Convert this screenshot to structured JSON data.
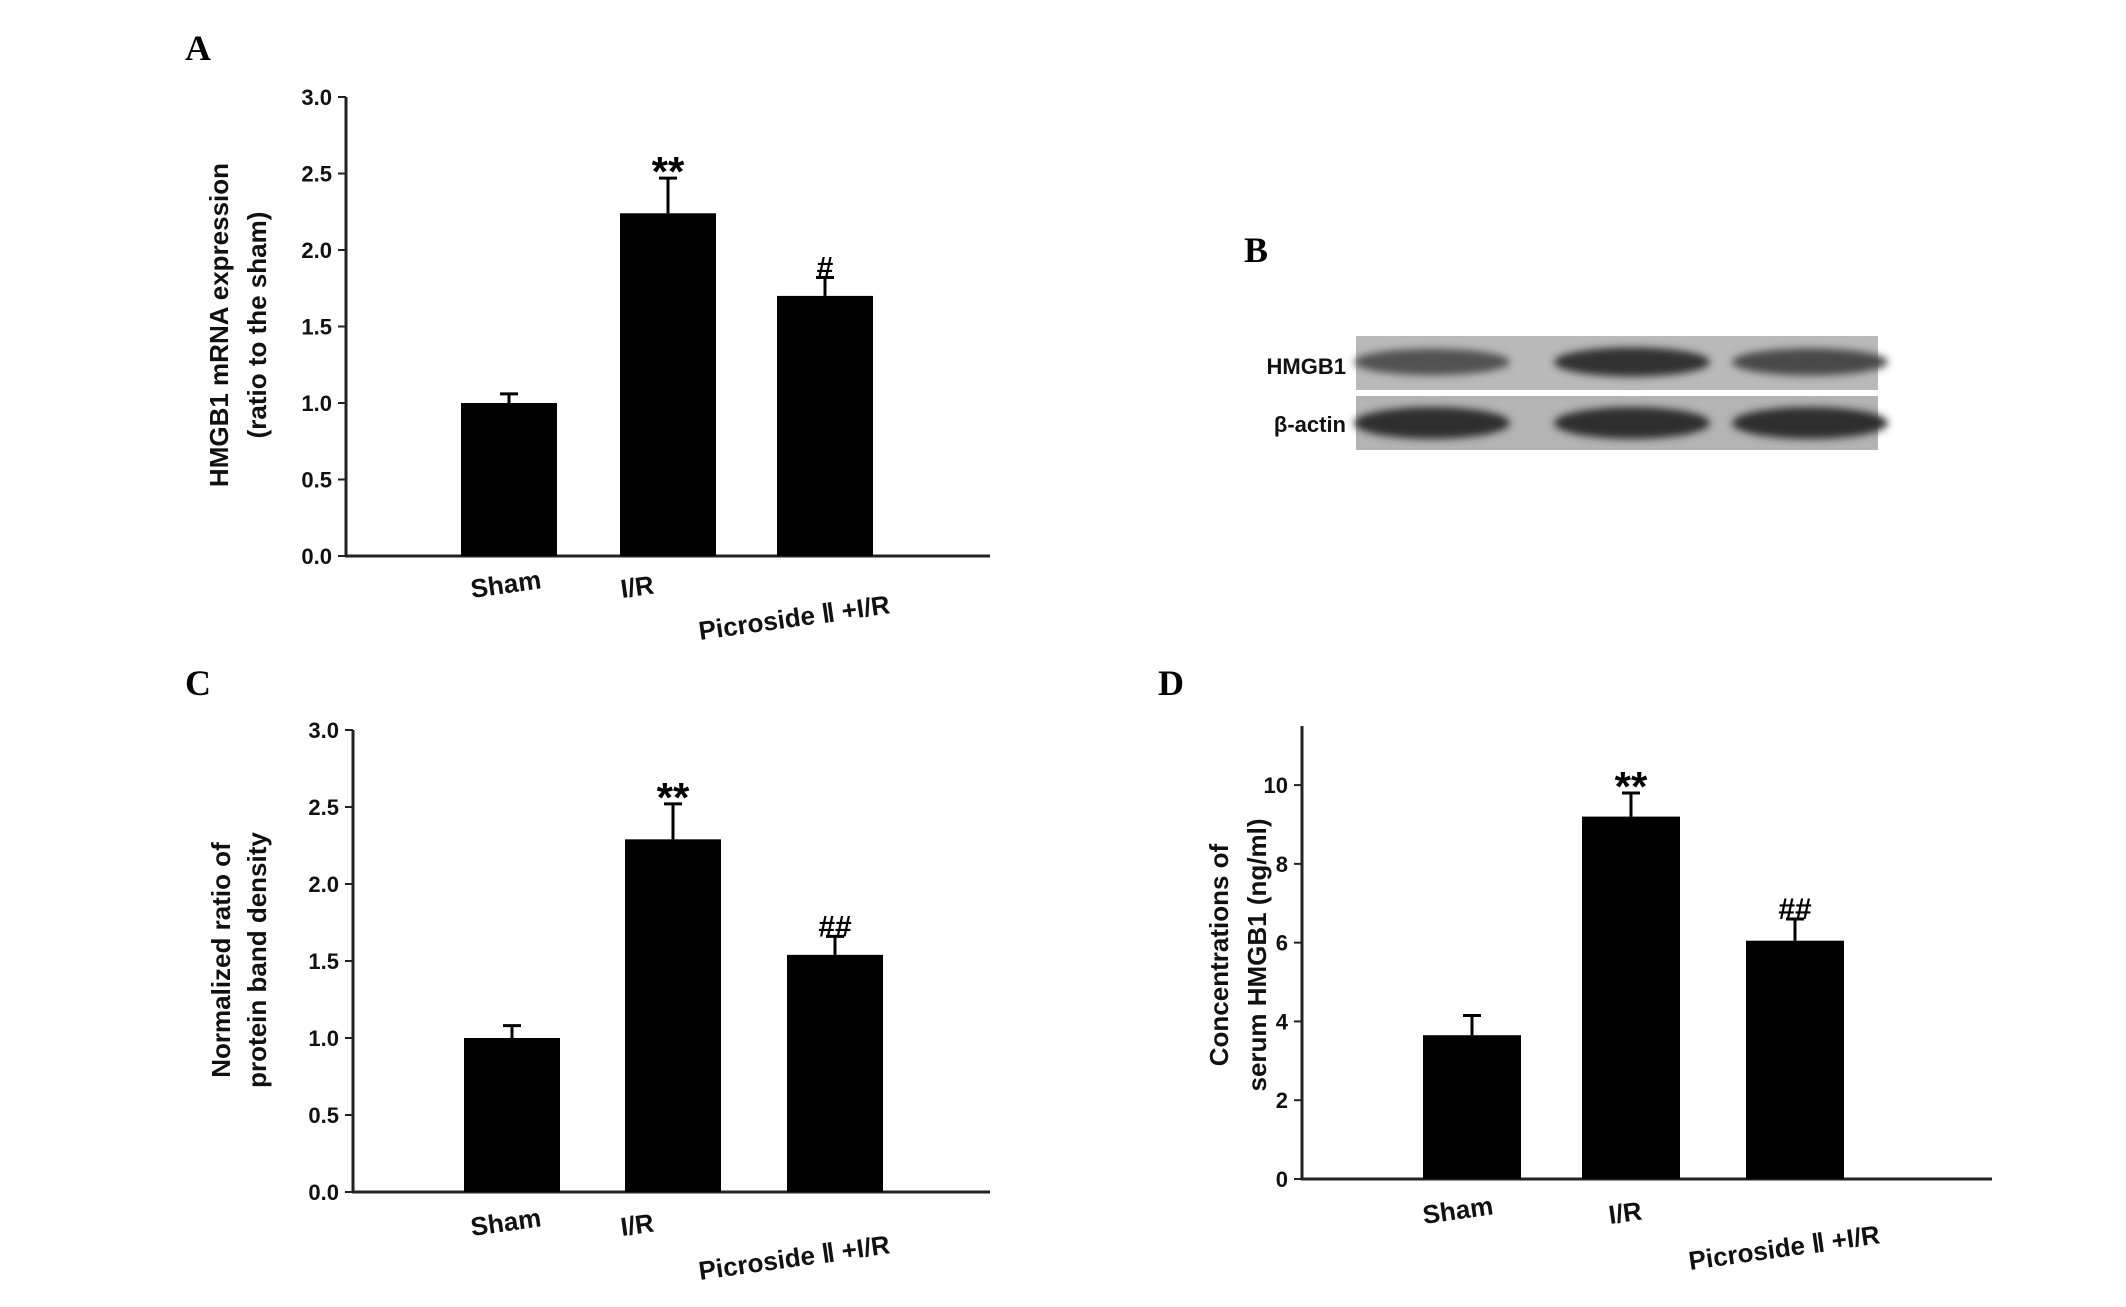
{
  "panels": {
    "A": {
      "letter": "A"
    },
    "B": {
      "letter": "B"
    },
    "C": {
      "letter": "C"
    },
    "D": {
      "letter": "D"
    }
  },
  "blot": {
    "rows": [
      {
        "label": "HMGB1",
        "band_intensity": [
          0.55,
          0.9,
          0.65
        ]
      },
      {
        "label": "β-actin",
        "band_intensity": [
          0.95,
          0.95,
          0.95
        ]
      }
    ]
  },
  "chart_data": [
    {
      "id": "A",
      "type": "bar",
      "categories": [
        "Sham",
        "I/R",
        "Picroside Ⅱ +I/R"
      ],
      "values": [
        1.0,
        2.24,
        1.7
      ],
      "errors": [
        0.06,
        0.23,
        0.12
      ],
      "significance": [
        "",
        "**",
        "#"
      ],
      "ylabel": [
        "HMGB1 mRNA expression",
        "(ratio to the sham)"
      ],
      "ylim": [
        0,
        3.0
      ],
      "yticks": [
        0.0,
        0.5,
        1.0,
        1.5,
        2.0,
        2.5,
        3.0
      ],
      "ytick_labels": [
        "0.0",
        "0.5",
        "1.0",
        "1.5",
        "2.0",
        "2.5",
        "3.0"
      ],
      "bar_color": "#000000"
    },
    {
      "id": "C",
      "type": "bar",
      "categories": [
        "Sham",
        "I/R",
        "Picroside Ⅱ +I/R"
      ],
      "values": [
        1.0,
        2.29,
        1.54
      ],
      "errors": [
        0.08,
        0.23,
        0.12
      ],
      "significance": [
        "",
        "**",
        "##"
      ],
      "ylabel": [
        "Normalized ratio of",
        "protein band density"
      ],
      "ylim": [
        0,
        3.0
      ],
      "yticks": [
        0.0,
        0.5,
        1.0,
        1.5,
        2.0,
        2.5,
        3.0
      ],
      "ytick_labels": [
        "0.0",
        "0.5",
        "1.0",
        "1.5",
        "2.0",
        "2.5",
        "3.0"
      ],
      "bar_color": "#000000"
    },
    {
      "id": "D",
      "type": "bar",
      "categories": [
        "Sham",
        "I/R",
        "Picroside Ⅱ +I/R"
      ],
      "values": [
        3.65,
        9.2,
        6.05
      ],
      "errors": [
        0.5,
        0.6,
        0.55
      ],
      "significance": [
        "",
        "**",
        "##"
      ],
      "ylabel": [
        "Concentrations of",
        "serum HMGB1 (ng/ml)"
      ],
      "ylim": [
        0,
        11.5
      ],
      "yticks": [
        0,
        2,
        4,
        6,
        8,
        10
      ],
      "ytick_labels": [
        "0",
        "2",
        "4",
        "6",
        "8",
        "10"
      ],
      "bar_color": "#000000"
    }
  ]
}
